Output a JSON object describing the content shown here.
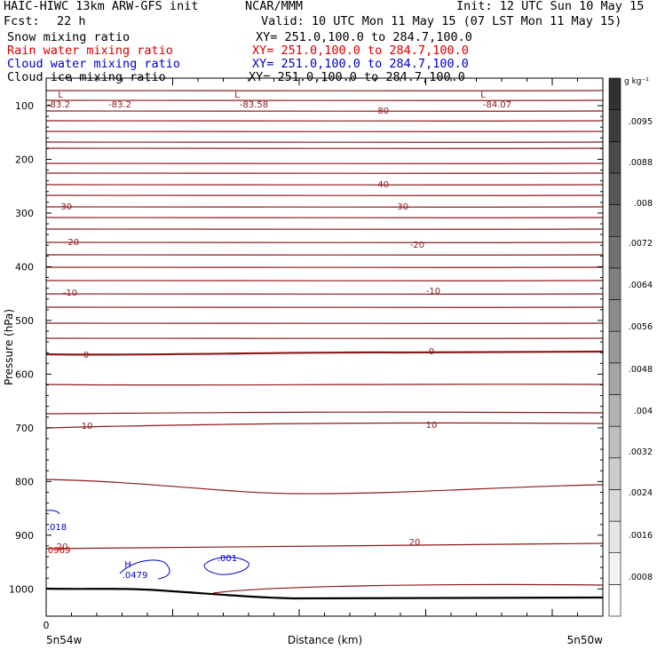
{
  "header": {
    "model": "HAIC-HIWC 13km ARW-GFS init",
    "org": "NCAR/MMM",
    "init": "Init: 12 UTC Sun 10 May 15",
    "fcst_label": "Fcst:",
    "fcst_value": "22 h",
    "valid": "Valid: 10 UTC Mon 11 May 15 (07 LST Mon 11 May 15)",
    "fields": [
      {
        "name": "Snow mixing ratio",
        "xy": "XY= 251.0,100.0 to 284.7,100.0",
        "color": "#000000"
      },
      {
        "name": "Rain water mixing ratio",
        "xy": "XY= 251.0,100.0 to 284.7,100.0",
        "color": "#d40000"
      },
      {
        "name": "Cloud water mixing ratio",
        "xy": "XY= 251.0,100.0 to 284.7,100.0",
        "color": "#0000c8"
      },
      {
        "name": "Cloud ice mixing ratio",
        "xy": "XY= 251.0,100.0 to 284.7,100.0",
        "color": "#000000"
      }
    ]
  },
  "chart_data": {
    "type": "line",
    "ylabel": "Pressure (hPa)",
    "xlabel": "Distance (km)",
    "x_tick_label": "0",
    "x_start_label": "5n54w",
    "x_end_label": "5n50w",
    "ylim": [
      1050,
      60
    ],
    "y_ticks": [
      100,
      200,
      300,
      400,
      500,
      600,
      700,
      800,
      900,
      1000
    ],
    "temperature_isotherms_degC": [
      {
        "value": -83.2,
        "label": "-83.2"
      },
      {
        "value": -80,
        "label": "-80"
      },
      {
        "value": -40,
        "label": "-40"
      },
      {
        "value": -30,
        "label": "-30"
      },
      {
        "value": -20,
        "label": "-20"
      },
      {
        "value": -10,
        "label": "-10"
      },
      {
        "value": 0,
        "label": "0"
      },
      {
        "value": 10,
        "label": "10"
      },
      {
        "value": 20,
        "label": "20"
      }
    ],
    "low_markers": [
      {
        "symbol": "L",
        "value": "-83.2"
      },
      {
        "symbol": "L",
        "value": "-83.58"
      },
      {
        "symbol": "L",
        "value": "-84.07"
      }
    ],
    "cloud_water": [
      {
        "symbol": "H",
        "value": ".0479"
      },
      {
        "value": ".001"
      },
      {
        "value": ".018"
      }
    ],
    "rain_water": [
      {
        "value": ".0969"
      }
    ],
    "colorbar": {
      "unit": "g kg⁻¹",
      "ticks": [
        ".0008",
        ".0016",
        ".0024",
        ".0032",
        ".004",
        ".0048",
        ".0056",
        ".0064",
        ".0072",
        ".008",
        ".0088",
        ".0095"
      ],
      "colors": [
        "#ffffff",
        "#f3f3f3",
        "#e6e6e6",
        "#d9d9d9",
        "#cccccc",
        "#bfbfbf",
        "#b2b2b2",
        "#a5a5a5",
        "#989898",
        "#8b8b8b",
        "#7e7e7e",
        "#717171",
        "#646464",
        "#575757",
        "#4a4a4a",
        "#3d3d3d",
        "#303030"
      ]
    },
    "colors": {
      "isotherm": "#8b1a1a",
      "terrain": "#000000",
      "cloud_water": "#0000c8",
      "rain": "#d40000"
    },
    "grid": false
  }
}
